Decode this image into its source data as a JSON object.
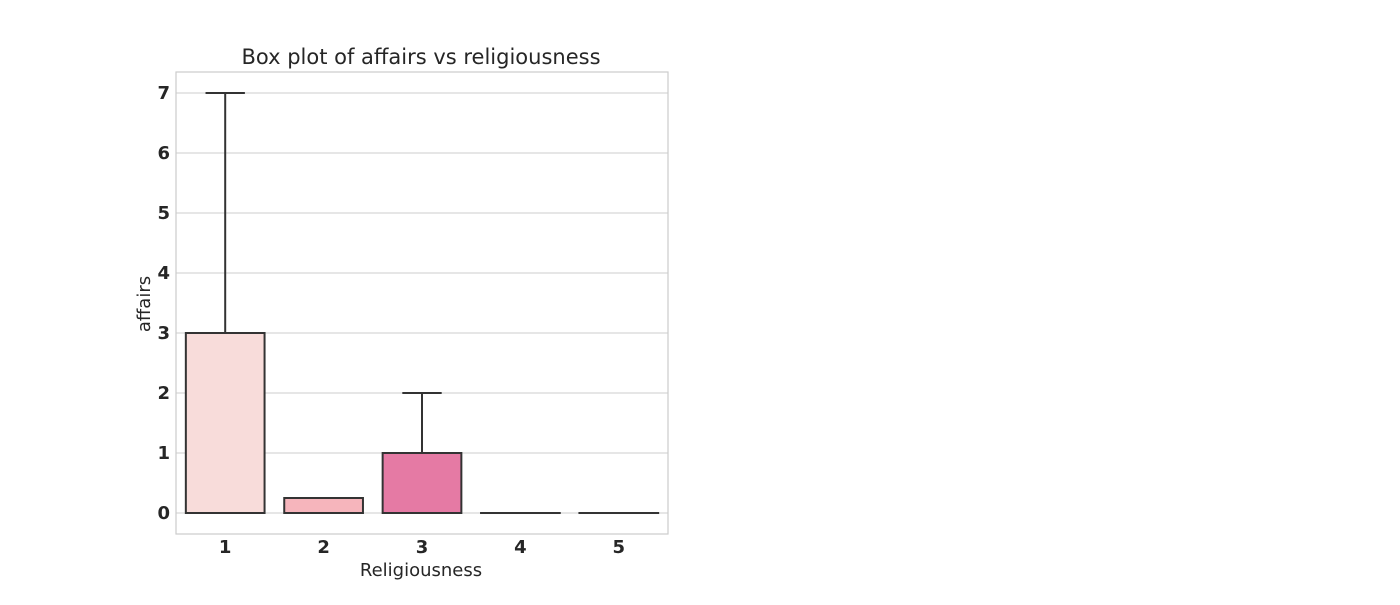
{
  "chart_data": {
    "type": "box",
    "title": "Box plot of affairs vs religiousness",
    "xlabel": "Religiousness",
    "ylabel": "affairs",
    "categories": [
      "1",
      "2",
      "3",
      "4",
      "5"
    ],
    "y_ticks": [
      "0",
      "1",
      "2",
      "3",
      "4",
      "5",
      "6",
      "7"
    ],
    "ylim": [
      -0.35,
      7.35
    ],
    "grid": true,
    "boxes": [
      {
        "category": "1",
        "whisker_low": 0,
        "q1": 0,
        "median": 0,
        "q3": 3,
        "whisker_high": 7,
        "color": "#f8dcda"
      },
      {
        "category": "2",
        "whisker_low": 0,
        "q1": 0,
        "median": 0,
        "q3": 0.25,
        "whisker_high": 0.25,
        "color": "#f6b5bc"
      },
      {
        "category": "3",
        "whisker_low": 0,
        "q1": 0,
        "median": 0,
        "q3": 1,
        "whisker_high": 2,
        "color": "#e57aa4"
      },
      {
        "category": "4",
        "whisker_low": 0,
        "q1": 0,
        "median": 0,
        "q3": 0,
        "whisker_high": 0,
        "color": "#c9478f"
      },
      {
        "category": "5",
        "whisker_low": 0,
        "q1": 0,
        "median": 0,
        "q3": 0,
        "whisker_high": 0,
        "color": "#90207a"
      }
    ]
  }
}
